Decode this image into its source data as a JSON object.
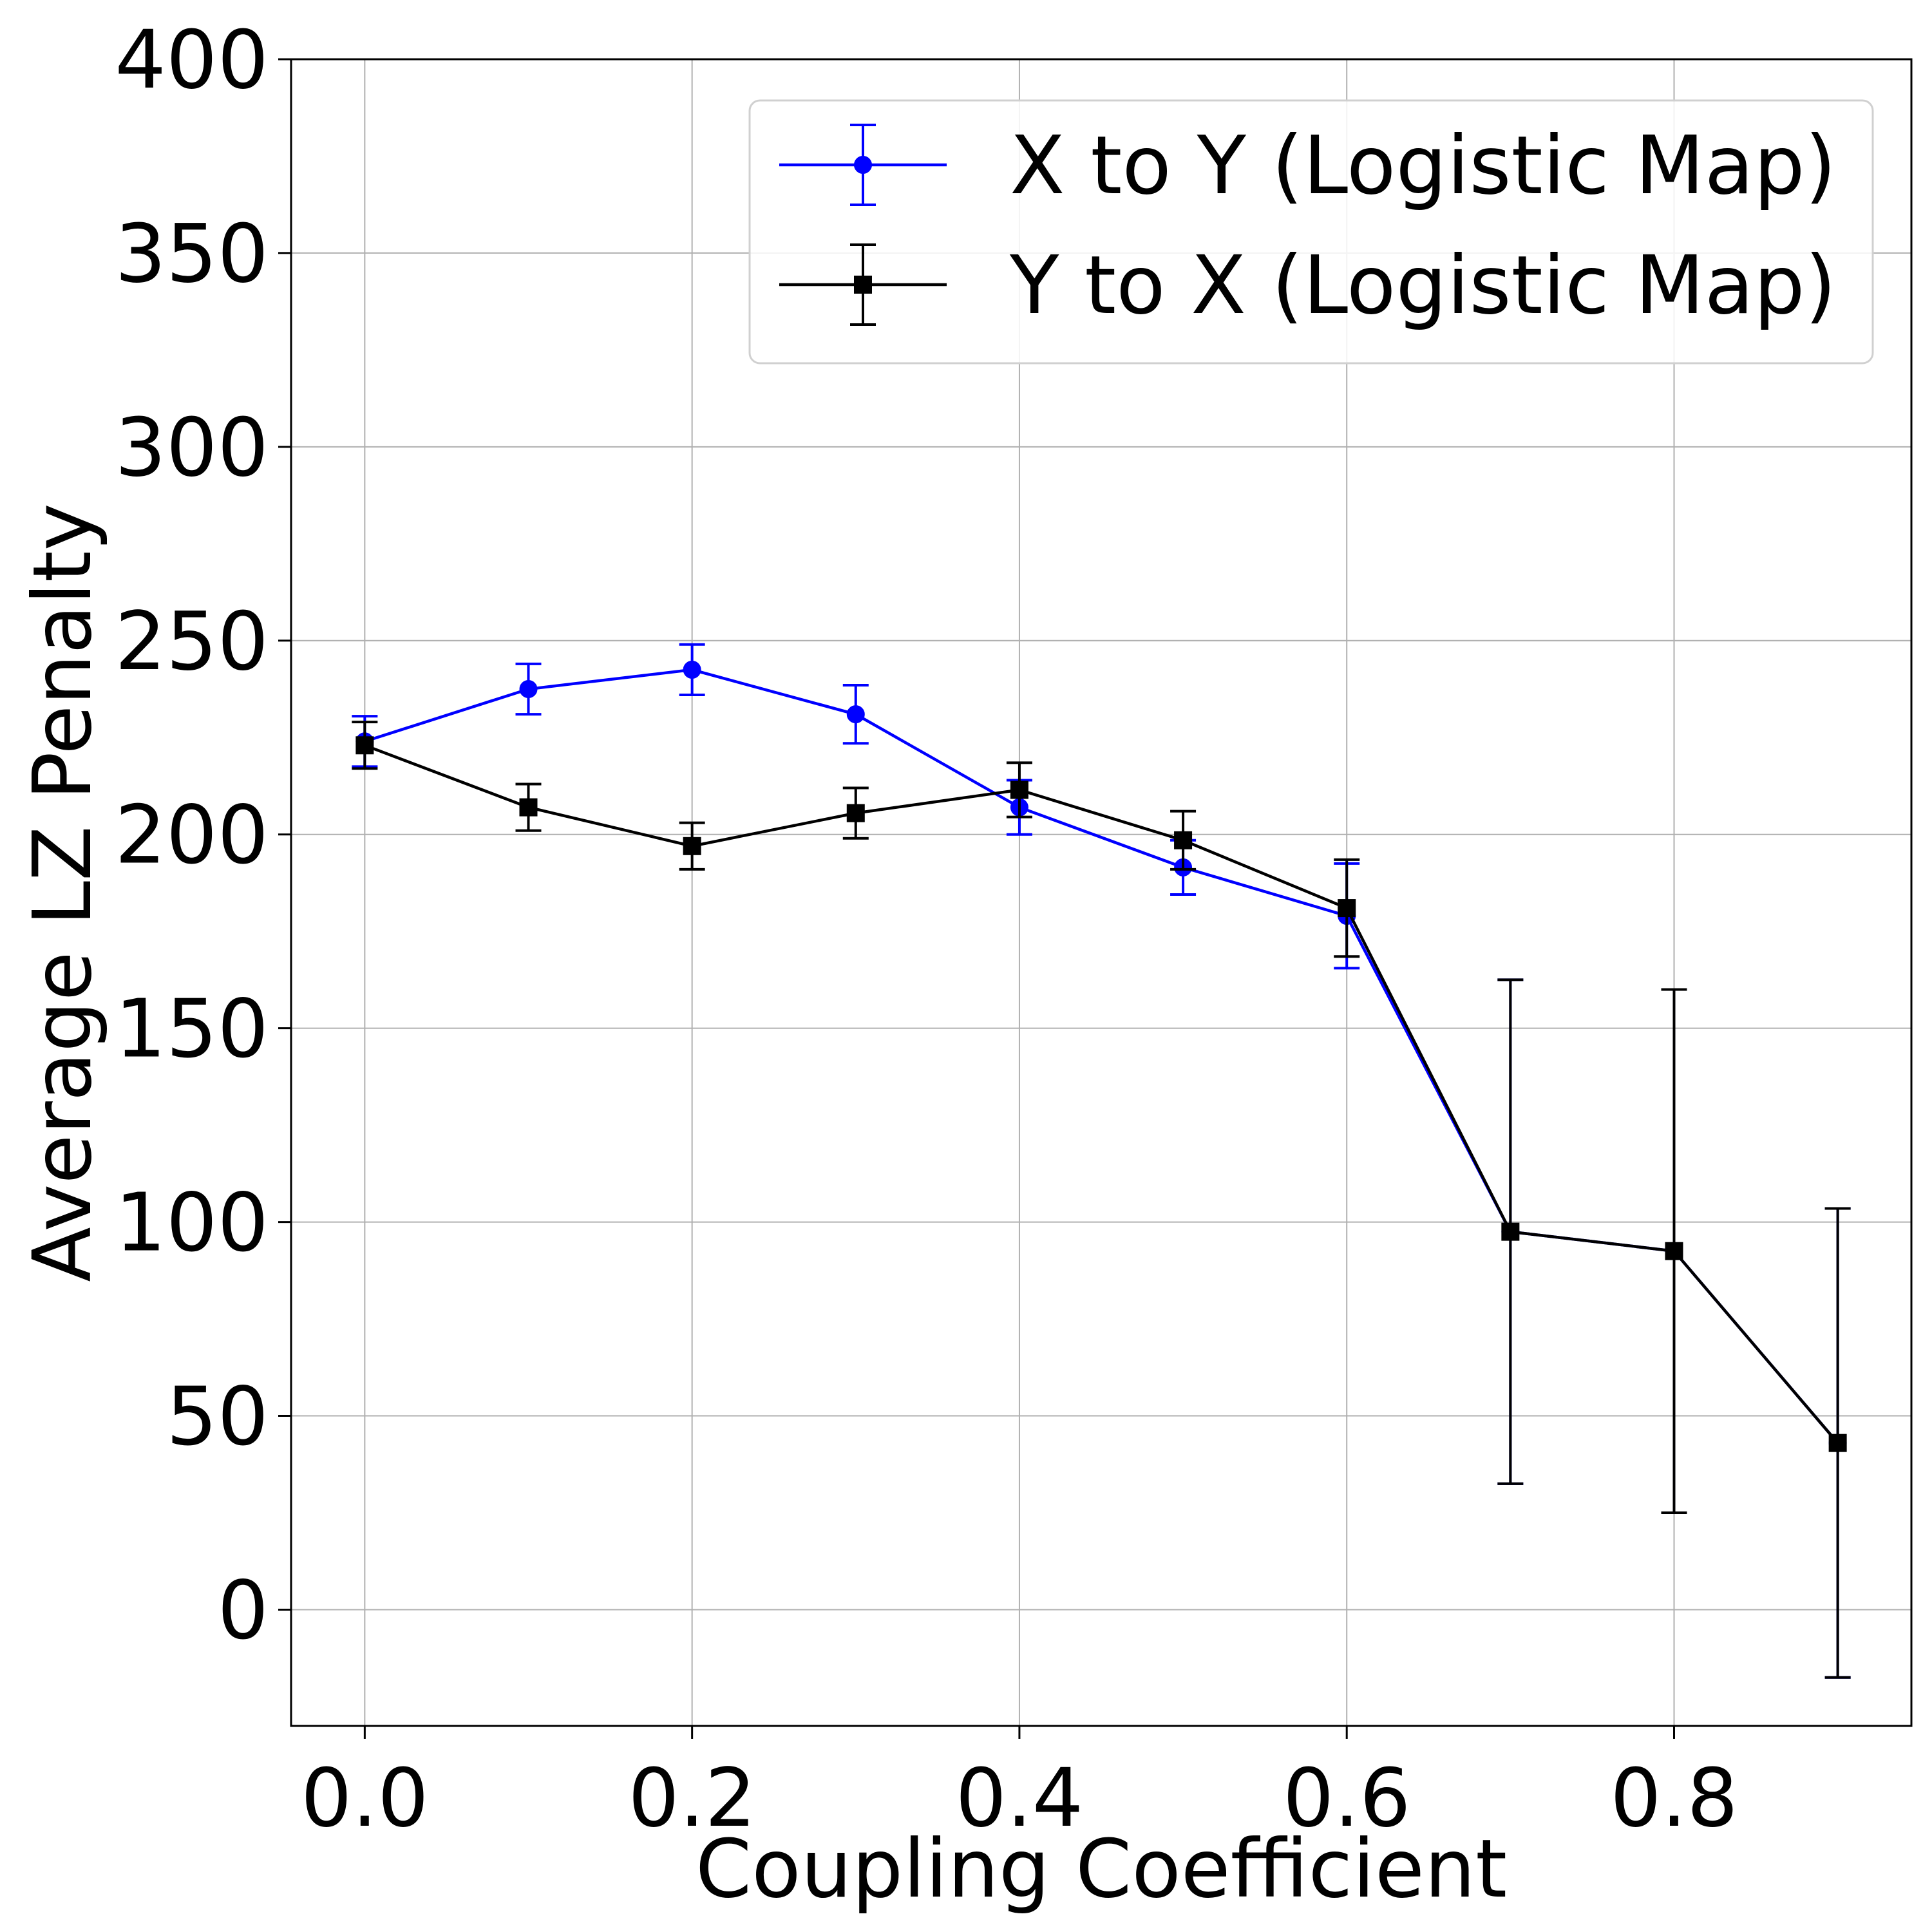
{
  "chart_data": {
    "type": "line",
    "title": "",
    "xlabel": "Coupling Coefficient",
    "ylabel": "Average LZ Penalty",
    "xlim": [
      -0.045,
      0.945
    ],
    "ylim": [
      -30,
      400
    ],
    "xticks": [
      "0.0",
      "0.2",
      "0.4",
      "0.6",
      "0.8"
    ],
    "xtick_values": [
      0.0,
      0.2,
      0.4,
      0.6,
      0.8
    ],
    "yticks": [
      "0",
      "50",
      "100",
      "150",
      "200",
      "250",
      "300",
      "350",
      "400"
    ],
    "ytick_values": [
      0,
      50,
      100,
      150,
      200,
      250,
      300,
      350,
      400
    ],
    "grid": true,
    "legend_position": "top-right",
    "error_bars": true,
    "series": [
      {
        "name": "X to Y (Logistic Map)",
        "color": "#0000ff",
        "marker": "circle",
        "x": [
          0.0,
          0.1,
          0.2,
          0.3,
          0.4,
          0.5,
          0.6,
          0.7,
          0.8,
          0.9
        ],
        "y": [
          224,
          237.5,
          242.5,
          231,
          207,
          191.5,
          179,
          97.5,
          92.5,
          43
        ],
        "yerr": [
          6.5,
          6.5,
          6.5,
          7.5,
          7,
          7,
          13.5,
          65,
          67.5,
          60.5
        ]
      },
      {
        "name": "Y to X (Logistic Map)",
        "color": "#000000",
        "marker": "square",
        "x": [
          0.0,
          0.1,
          0.2,
          0.3,
          0.4,
          0.5,
          0.6,
          0.7,
          0.8,
          0.9
        ],
        "y": [
          223,
          207,
          197,
          205.5,
          211.5,
          198.5,
          181,
          97.5,
          92.5,
          43
        ],
        "yerr": [
          6,
          6,
          6,
          6.5,
          7,
          7.5,
          12.5,
          65,
          67.5,
          60.5
        ]
      }
    ]
  }
}
